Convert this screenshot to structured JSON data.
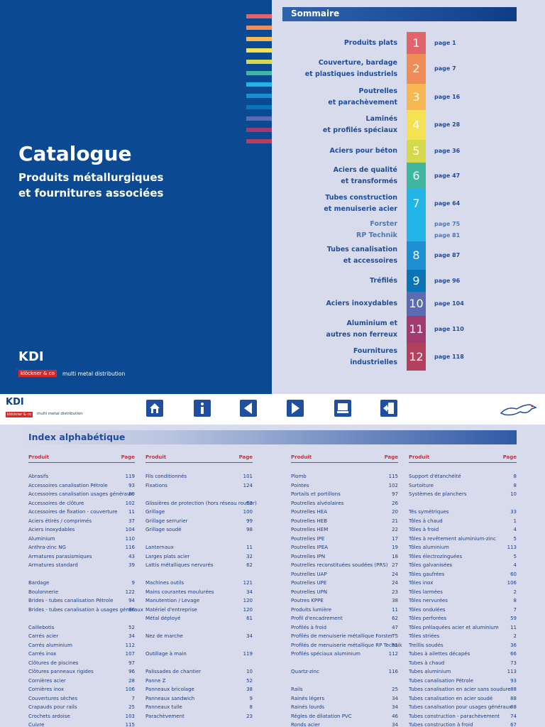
{
  "cover": {
    "title": "Catalogue",
    "subtitle": [
      "Produits métallurgiques",
      "et fournitures associées"
    ],
    "brand": "KDI",
    "logo": "klöckner & co",
    "tagline": "multi metal distribution"
  },
  "sommaire": {
    "title": "Sommaire",
    "items": [
      {
        "number": 1,
        "title": [
          "Produits plats"
        ],
        "page": "page 1",
        "color": "#e0646a"
      },
      {
        "number": 2,
        "title": [
          "Couverture, bardage",
          "et plastiques industriels"
        ],
        "page": "page 7",
        "color": "#f08c58"
      },
      {
        "number": 3,
        "title": [
          "Poutrelles",
          "et parachèvement"
        ],
        "page": "page 16",
        "color": "#f7b752"
      },
      {
        "number": 4,
        "title": [
          "Laminés",
          "et profilés spéciaux"
        ],
        "page": "page 28",
        "color": "#f3e252"
      },
      {
        "number": 5,
        "title": [
          "Aciers pour béton"
        ],
        "page": "page 36",
        "color": "#d5d94c"
      },
      {
        "number": 6,
        "title": [
          "Aciers de qualité",
          "et transformés"
        ],
        "page": "page 47",
        "color": "#3fb79f"
      },
      {
        "number": 7,
        "title": [
          "Tubes construction",
          "et menuiserie acier"
        ],
        "page": "page 64",
        "color": "#22b4e6",
        "sub": [
          {
            "label": "Forster",
            "page": "page 75"
          },
          {
            "label": "RP Technik",
            "page": "page 81"
          }
        ]
      },
      {
        "number": 8,
        "title": [
          "Tubes canalisation",
          "et accessoires"
        ],
        "page": "page 87",
        "color": "#1b8fd2"
      },
      {
        "number": 9,
        "title": [
          "Tréfilés"
        ],
        "page": "page 96",
        "color": "#0b74b6"
      },
      {
        "number": 10,
        "title": [
          "Aciers inoxydables"
        ],
        "page": "page 104",
        "color": "#5b6cb4"
      },
      {
        "number": 11,
        "title": [
          "Aluminium et",
          "autres non ferreux"
        ],
        "page": "page 110",
        "color": "#a23a70"
      },
      {
        "number": 12,
        "title": [
          "Fournitures",
          "industrielles"
        ],
        "page": "page 118",
        "color": "#b3405c"
      }
    ]
  },
  "toolbar": {
    "brand": "KDI",
    "logo": "klöckner & co",
    "tagline": "multi metal distribution"
  },
  "index": {
    "title": "Index alphabétique",
    "columns": [
      {
        "header": [
          "Produit",
          "Page"
        ],
        "groups": [
          [
            [
              "Abrasifs",
              119
            ],
            [
              "Accessoires canalisation Pétrole",
              93
            ],
            [
              "Accessoires canalisation usages généraux",
              89
            ],
            [
              "Accessoires de clôture",
              102
            ],
            [
              "Accessoires de fixation - couverture",
              11
            ],
            [
              "Aciers étirés / comprimés",
              37
            ],
            [
              "Aciers inoxydables",
              104
            ],
            [
              "Aluminium",
              110
            ],
            [
              "Anthra-zinc NG",
              116
            ],
            [
              "Armatures parasismiques",
              43
            ],
            [
              "Armatures standard",
              39
            ]
          ],
          [
            [
              "Bardage",
              9
            ],
            [
              "Boulonnerie",
              122
            ],
            [
              "Brides - tubes canalisation Pétrole",
              94
            ],
            [
              "Brides - tubes canalisation à usages généraux",
              90
            ]
          ],
          [
            [
              "Caillebotis",
              52
            ],
            [
              "Carrés acier",
              34
            ],
            [
              "Carrés aluminium",
              112
            ],
            [
              "Carrés inox",
              107
            ],
            [
              "Clôtures de piscines",
              97
            ],
            [
              "Clôtures panneaux rigides",
              96
            ],
            [
              "Cornières acier",
              28
            ],
            [
              "Cornières inox",
              106
            ],
            [
              "Couvertures sèches",
              7
            ],
            [
              "Crapauds pour rails",
              25
            ],
            [
              "Crochets ardoise",
              103
            ],
            [
              "Cuivre",
              115
            ]
          ]
        ]
      },
      {
        "header": [
          "Produit",
          "Page"
        ],
        "groups": [
          [
            [
              "Fils conditionnés",
              101
            ],
            [
              "Fixations",
              124
            ]
          ],
          [
            [
              "Glissières de protection (hors réseau routier)",
              63
            ],
            [
              "Grillage",
              100
            ],
            [
              "Grillage serrurier",
              99
            ],
            [
              "Grillage soudé",
              98
            ]
          ],
          [
            [
              "Lanternaux",
              11
            ],
            [
              "Larges plats acier",
              32
            ],
            [
              "Lattis métalliques nervurés",
              62
            ]
          ],
          [
            [
              "Machines outils",
              121
            ],
            [
              "Mains courantes moulurées",
              34
            ],
            [
              "Manutention / Levage",
              120
            ],
            [
              "Matériel d'entreprise",
              120
            ],
            [
              "Métal déployé",
              61
            ]
          ],
          [
            [
              "Nez de marche",
              34
            ]
          ],
          [
            [
              "Outillage à main",
              119
            ]
          ],
          [
            [
              "Palissades de chantier",
              10
            ],
            [
              "Panne Z",
              52
            ],
            [
              "Panneaux bricolage",
              38
            ],
            [
              "Panneaux sandwich",
              9
            ],
            [
              "Panneaux tuile",
              8
            ],
            [
              "Parachèvement",
              23
            ]
          ]
        ]
      },
      {
        "header": [
          "Produit",
          "Page"
        ],
        "groups": [
          [
            [
              "Plomb",
              115
            ],
            [
              "Pointes",
              102
            ],
            [
              "Portails et portillons",
              97
            ],
            [
              "Poutrelles alvéolaires",
              26
            ],
            [
              "Poutrelles HEA",
              20
            ],
            [
              "Poutrelles HEB",
              21
            ],
            [
              "Poutrelles HEM",
              22
            ],
            [
              "Poutrelles IPE",
              17
            ],
            [
              "Poutrelles IPEA",
              19
            ],
            [
              "Poutrelles IPN",
              18
            ],
            [
              "Poutrelles reconstituées soudées (PRS)",
              27
            ],
            [
              "Poutrelles UAP",
              24
            ],
            [
              "Poutrelles UPE",
              24
            ],
            [
              "Poutrelles UPN",
              23
            ],
            [
              "Poutres KPPE",
              38
            ],
            [
              "Produits lumière",
              11
            ],
            [
              "Profil d'encadrement",
              62
            ],
            [
              "Profilés à froid",
              47
            ],
            [
              "Profilés de menuiserie métallique Forster",
              75
            ],
            [
              "Profilés de menuiserie métallique RP Technik",
              81
            ],
            [
              "Profilés spéciaux aluminium",
              112
            ]
          ],
          [
            [
              "Quartz-zinc",
              116
            ]
          ],
          [
            [
              "Rails",
              25
            ],
            [
              "Rainés légers",
              34
            ],
            [
              "Rainés lourds",
              34
            ],
            [
              "Règles de dilatation PVC",
              46
            ],
            [
              "Ronds acier",
              34
            ]
          ]
        ]
      },
      {
        "header": [
          "Produit",
          "Page"
        ],
        "groups": [
          [
            [
              "Support d'étanchéité",
              8
            ],
            [
              "Surtoiture",
              8
            ],
            [
              "Systèmes de planchers",
              10
            ]
          ],
          [
            [
              "Tés symétriques",
              33
            ],
            [
              "Tôles à chaud",
              1
            ],
            [
              "Tôles à froid",
              4
            ],
            [
              "Tôles à revêtement aluminium-zinc",
              5
            ],
            [
              "Tôles aluminium",
              113
            ],
            [
              "Tôles électrozinguées",
              5
            ],
            [
              "Tôles galvanisées",
              4
            ],
            [
              "Tôles gaufrées",
              60
            ],
            [
              "Tôles inox",
              106
            ],
            [
              "Tôles larmées",
              2
            ],
            [
              "Tôles nervurées",
              8
            ],
            [
              "Tôles ondulées",
              7
            ],
            [
              "Tôles perforées",
              59
            ],
            [
              "Tôles prélaquées acier et aluminium",
              11
            ],
            [
              "Tôles striées",
              2
            ],
            [
              "Treillis soudés",
              36
            ],
            [
              "Tubes à ailettes décapés",
              66
            ],
            [
              "Tubes à chaud",
              73
            ],
            [
              "Tubes aluminium",
              113
            ],
            [
              "Tubes canalisation Pétrole",
              93
            ],
            [
              "Tubes canalisation en acier sans soudure",
              88
            ],
            [
              "Tubes canalisation en acier soudé",
              88
            ],
            [
              "Tubes canalisation pour usages généraux",
              88
            ],
            [
              "Tubes construction - parachèvement",
              74
            ],
            [
              "Tubes construction à froid",
              67
            ]
          ]
        ]
      }
    ]
  }
}
